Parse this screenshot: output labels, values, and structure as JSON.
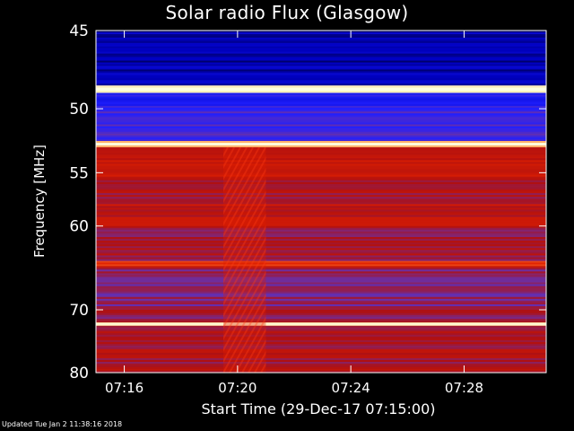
{
  "chart_data": {
    "type": "heatmap",
    "title": "Solar radio Flux (Glasgow)",
    "xlabel": "Start Time (29-Dec-17 07:15:00)",
    "ylabel": "Frequency [MHz]",
    "x_unit": "minutes",
    "xlim": [
      0,
      15.9
    ],
    "ylim": [
      45,
      80
    ],
    "y_scale": "reciprocal",
    "x_ticks": [
      {
        "value": 1,
        "label": "07:16"
      },
      {
        "value": 5,
        "label": "07:20"
      },
      {
        "value": 9,
        "label": "07:24"
      },
      {
        "value": 13,
        "label": "07:28"
      }
    ],
    "y_ticks": [
      {
        "value": 45,
        "label": "45"
      },
      {
        "value": 50,
        "label": "50"
      },
      {
        "value": 55,
        "label": "55"
      },
      {
        "value": 60,
        "label": "60"
      },
      {
        "value": 70,
        "label": "70"
      },
      {
        "value": 80,
        "label": "80"
      }
    ],
    "colormap": [
      "#000030",
      "#0000c0",
      "#2020ff",
      "#6a2fa8",
      "#b01010",
      "#e02000",
      "#ff9040",
      "#ffffd0"
    ],
    "bands": [
      {
        "from": 45.0,
        "to": 48.4,
        "level": 0.12
      },
      {
        "from": 48.4,
        "to": 48.9,
        "level": 0.98
      },
      {
        "from": 48.9,
        "to": 50.2,
        "level": 0.28
      },
      {
        "from": 50.2,
        "to": 52.4,
        "level": 0.35
      },
      {
        "from": 52.4,
        "to": 52.9,
        "level": 0.9
      },
      {
        "from": 52.9,
        "to": 55.5,
        "level": 0.62
      },
      {
        "from": 55.5,
        "to": 57.5,
        "level": 0.56
      },
      {
        "from": 57.5,
        "to": 60.0,
        "level": 0.6
      },
      {
        "from": 60.0,
        "to": 63.8,
        "level": 0.55
      },
      {
        "from": 63.8,
        "to": 64.6,
        "level": 0.7
      },
      {
        "from": 64.6,
        "to": 70.0,
        "level": 0.48
      },
      {
        "from": 70.0,
        "to": 71.8,
        "level": 0.5
      },
      {
        "from": 71.8,
        "to": 72.3,
        "level": 0.96
      },
      {
        "from": 72.3,
        "to": 80.0,
        "level": 0.55
      }
    ],
    "enhanced_region": {
      "x_from": 4.5,
      "x_to": 6.0,
      "y_from": 52.9,
      "y_to": 80.0
    }
  },
  "footer_text": "Updated Tue Jan  2 11:38:16 2018"
}
